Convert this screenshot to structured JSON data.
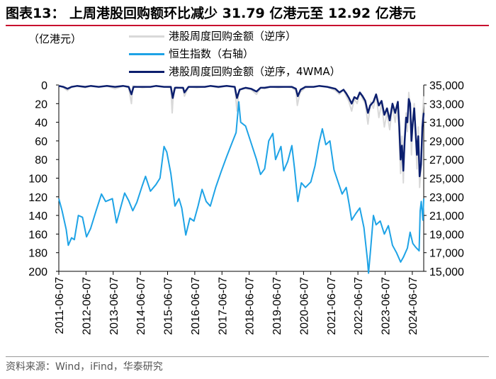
{
  "title": "图表13： 上周港股回购额环比减少 31.79 亿港元至 12.92 亿港元",
  "unit_label": "（亿港元）",
  "source": "资料来源：Wind，iFind，华泰研究",
  "colors": {
    "weekly": "#d9d9d9",
    "hsi": "#1ea3e6",
    "wma": "#0c1f6e",
    "title_rule": "#c8102e"
  },
  "legend": [
    {
      "label": "港股周度回购金额（逆序）",
      "color": "#d9d9d9"
    },
    {
      "label": "恒生指数（右轴）",
      "color": "#1ea3e6"
    },
    {
      "label": "港股周度回购金额（逆序，4WMA）",
      "color": "#0c1f6e"
    }
  ],
  "chart_data": {
    "type": "line",
    "x_labels": [
      "2011-06-07",
      "2012-06-07",
      "2013-06-07",
      "2014-06-07",
      "2015-06-07",
      "2016-06-07",
      "2017-06-07",
      "2018-06-07",
      "2019-06-07",
      "2020-06-07",
      "2021-06-07",
      "2022-06-07",
      "2023-06-07",
      "2024-06-07"
    ],
    "x_range": [
      2011.43,
      2024.85
    ],
    "left_axis": {
      "ticks": [
        "0",
        "20",
        "40",
        "60",
        "80",
        "100",
        "120",
        "140",
        "160",
        "180",
        "200"
      ],
      "range": [
        0,
        200
      ],
      "inverted": true
    },
    "right_axis": {
      "ticks": [
        "35,000",
        "33,000",
        "31,000",
        "29,000",
        "27,000",
        "25,000",
        "23,000",
        "21,000",
        "19,000",
        "17,000",
        "15,000"
      ],
      "range": [
        15000,
        35000
      ]
    },
    "series": [
      {
        "name": "恒生指数（右轴）",
        "axis": "right",
        "points": [
          [
            2011.43,
            22800
          ],
          [
            2011.55,
            21500
          ],
          [
            2011.7,
            19500
          ],
          [
            2011.78,
            17800
          ],
          [
            2011.9,
            18600
          ],
          [
            2012.0,
            18400
          ],
          [
            2012.15,
            21000
          ],
          [
            2012.3,
            20800
          ],
          [
            2012.45,
            18700
          ],
          [
            2012.6,
            19600
          ],
          [
            2012.8,
            21500
          ],
          [
            2013.0,
            23300
          ],
          [
            2013.15,
            22500
          ],
          [
            2013.4,
            22800
          ],
          [
            2013.55,
            20200
          ],
          [
            2013.7,
            21800
          ],
          [
            2013.85,
            23400
          ],
          [
            2014.0,
            22600
          ],
          [
            2014.15,
            21500
          ],
          [
            2014.3,
            22400
          ],
          [
            2014.5,
            24200
          ],
          [
            2014.62,
            25200
          ],
          [
            2014.8,
            23600
          ],
          [
            2015.0,
            24300
          ],
          [
            2015.15,
            25000
          ],
          [
            2015.3,
            28400
          ],
          [
            2015.4,
            27800
          ],
          [
            2015.55,
            25500
          ],
          [
            2015.7,
            22000
          ],
          [
            2015.85,
            22800
          ],
          [
            2015.95,
            21800
          ],
          [
            2016.1,
            18900
          ],
          [
            2016.25,
            20700
          ],
          [
            2016.4,
            20400
          ],
          [
            2016.55,
            22000
          ],
          [
            2016.7,
            23800
          ],
          [
            2016.85,
            22500
          ],
          [
            2017.0,
            22000
          ],
          [
            2017.2,
            24000
          ],
          [
            2017.4,
            25700
          ],
          [
            2017.6,
            27300
          ],
          [
            2017.8,
            28800
          ],
          [
            2017.95,
            29900
          ],
          [
            2018.05,
            33200
          ],
          [
            2018.12,
            31000
          ],
          [
            2018.3,
            30600
          ],
          [
            2018.5,
            28800
          ],
          [
            2018.7,
            27000
          ],
          [
            2018.85,
            25400
          ],
          [
            2019.0,
            26000
          ],
          [
            2019.15,
            29000
          ],
          [
            2019.3,
            29800
          ],
          [
            2019.4,
            27000
          ],
          [
            2019.6,
            28400
          ],
          [
            2019.7,
            25800
          ],
          [
            2019.85,
            26800
          ],
          [
            2020.0,
            28500
          ],
          [
            2020.1,
            26000
          ],
          [
            2020.22,
            22500
          ],
          [
            2020.35,
            24500
          ],
          [
            2020.5,
            24000
          ],
          [
            2020.7,
            24600
          ],
          [
            2020.85,
            26300
          ],
          [
            2021.0,
            28800
          ],
          [
            2021.12,
            30300
          ],
          [
            2021.25,
            28600
          ],
          [
            2021.4,
            29000
          ],
          [
            2021.55,
            25900
          ],
          [
            2021.7,
            24600
          ],
          [
            2021.85,
            23300
          ],
          [
            2022.0,
            24000
          ],
          [
            2022.12,
            22000
          ],
          [
            2022.2,
            20500
          ],
          [
            2022.35,
            21200
          ],
          [
            2022.5,
            21800
          ],
          [
            2022.65,
            19700
          ],
          [
            2022.78,
            16200
          ],
          [
            2022.82,
            14800
          ],
          [
            2022.9,
            17500
          ],
          [
            2023.0,
            21000
          ],
          [
            2023.1,
            20000
          ],
          [
            2023.25,
            20400
          ],
          [
            2023.4,
            19000
          ],
          [
            2023.55,
            19900
          ],
          [
            2023.7,
            17800
          ],
          [
            2023.85,
            17000
          ],
          [
            2024.0,
            16000
          ],
          [
            2024.1,
            16500
          ],
          [
            2024.25,
            17500
          ],
          [
            2024.35,
            19200
          ],
          [
            2024.45,
            18000
          ],
          [
            2024.55,
            17600
          ],
          [
            2024.68,
            17200
          ],
          [
            2024.72,
            21500
          ],
          [
            2024.76,
            22500
          ],
          [
            2024.82,
            20500
          ],
          [
            2024.85,
            22800
          ]
        ]
      },
      {
        "name": "港股周度回购金额（逆序）",
        "axis": "left",
        "points": [
          [
            2011.43,
            0
          ],
          [
            2011.6,
            3
          ],
          [
            2011.75,
            6
          ],
          [
            2011.9,
            2
          ],
          [
            2012.1,
            1
          ],
          [
            2012.4,
            3
          ],
          [
            2012.6,
            1
          ],
          [
            2012.9,
            2
          ],
          [
            2013.2,
            1
          ],
          [
            2013.5,
            4
          ],
          [
            2013.8,
            1
          ],
          [
            2014.0,
            3
          ],
          [
            2014.1,
            20
          ],
          [
            2014.15,
            1
          ],
          [
            2014.5,
            3
          ],
          [
            2014.8,
            2
          ],
          [
            2015.0,
            1
          ],
          [
            2015.3,
            2
          ],
          [
            2015.55,
            3
          ],
          [
            2015.6,
            30
          ],
          [
            2015.65,
            6
          ],
          [
            2015.75,
            2
          ],
          [
            2016.0,
            4
          ],
          [
            2016.05,
            12
          ],
          [
            2016.2,
            2
          ],
          [
            2016.5,
            3
          ],
          [
            2016.8,
            2
          ],
          [
            2017.0,
            1
          ],
          [
            2017.3,
            3
          ],
          [
            2017.6,
            1
          ],
          [
            2017.9,
            2
          ],
          [
            2017.98,
            28
          ],
          [
            2018.05,
            7
          ],
          [
            2018.2,
            3
          ],
          [
            2018.5,
            5
          ],
          [
            2018.7,
            10
          ],
          [
            2018.85,
            3
          ],
          [
            2019.0,
            4
          ],
          [
            2019.2,
            2
          ],
          [
            2019.5,
            3
          ],
          [
            2019.8,
            2
          ],
          [
            2020.0,
            3
          ],
          [
            2020.15,
            6
          ],
          [
            2020.2,
            22
          ],
          [
            2020.3,
            8
          ],
          [
            2020.5,
            3
          ],
          [
            2020.8,
            2
          ],
          [
            2021.0,
            1
          ],
          [
            2021.3,
            2
          ],
          [
            2021.6,
            6
          ],
          [
            2021.75,
            10
          ],
          [
            2021.9,
            5
          ],
          [
            2022.0,
            12
          ],
          [
            2022.1,
            18
          ],
          [
            2022.2,
            28
          ],
          [
            2022.3,
            15
          ],
          [
            2022.4,
            20
          ],
          [
            2022.5,
            8
          ],
          [
            2022.6,
            15
          ],
          [
            2022.7,
            20
          ],
          [
            2022.8,
            42
          ],
          [
            2022.85,
            30
          ],
          [
            2022.9,
            18
          ],
          [
            2023.0,
            25
          ],
          [
            2023.1,
            10
          ],
          [
            2023.2,
            35
          ],
          [
            2023.3,
            20
          ],
          [
            2023.4,
            45
          ],
          [
            2023.5,
            30
          ],
          [
            2023.6,
            48
          ],
          [
            2023.7,
            22
          ],
          [
            2023.8,
            40
          ],
          [
            2023.9,
            18
          ],
          [
            2023.95,
            60
          ],
          [
            2024.0,
            95
          ],
          [
            2024.05,
            55
          ],
          [
            2024.1,
            105
          ],
          [
            2024.15,
            60
          ],
          [
            2024.2,
            30
          ],
          [
            2024.25,
            50
          ],
          [
            2024.3,
            8
          ],
          [
            2024.35,
            25
          ],
          [
            2024.4,
            75
          ],
          [
            2024.45,
            35
          ],
          [
            2024.5,
            20
          ],
          [
            2024.6,
            90
          ],
          [
            2024.65,
            45
          ],
          [
            2024.7,
            110
          ],
          [
            2024.75,
            90
          ],
          [
            2024.8,
            35
          ],
          [
            2024.85,
            12
          ]
        ]
      },
      {
        "name": "港股周度回购金额（逆序，4WMA）",
        "axis": "left",
        "points": [
          [
            2011.43,
            1
          ],
          [
            2011.6,
            2
          ],
          [
            2011.75,
            4
          ],
          [
            2011.9,
            2
          ],
          [
            2012.1,
            1
          ],
          [
            2012.4,
            2
          ],
          [
            2012.6,
            1
          ],
          [
            2012.9,
            2
          ],
          [
            2013.2,
            1
          ],
          [
            2013.5,
            2
          ],
          [
            2013.8,
            1
          ],
          [
            2014.0,
            2
          ],
          [
            2014.1,
            10
          ],
          [
            2014.18,
            2
          ],
          [
            2014.5,
            2
          ],
          [
            2014.8,
            2
          ],
          [
            2015.0,
            1
          ],
          [
            2015.3,
            2
          ],
          [
            2015.55,
            2
          ],
          [
            2015.62,
            14
          ],
          [
            2015.7,
            3
          ],
          [
            2016.0,
            3
          ],
          [
            2016.05,
            8
          ],
          [
            2016.2,
            2
          ],
          [
            2016.5,
            2
          ],
          [
            2016.8,
            2
          ],
          [
            2017.0,
            1
          ],
          [
            2017.3,
            2
          ],
          [
            2017.6,
            1
          ],
          [
            2017.9,
            2
          ],
          [
            2017.98,
            14
          ],
          [
            2018.08,
            5
          ],
          [
            2018.3,
            3
          ],
          [
            2018.5,
            4
          ],
          [
            2018.7,
            7
          ],
          [
            2018.85,
            3
          ],
          [
            2019.0,
            3
          ],
          [
            2019.2,
            2
          ],
          [
            2019.5,
            2
          ],
          [
            2019.8,
            2
          ],
          [
            2020.0,
            2
          ],
          [
            2020.15,
            4
          ],
          [
            2020.22,
            12
          ],
          [
            2020.32,
            5
          ],
          [
            2020.5,
            2
          ],
          [
            2020.8,
            2
          ],
          [
            2021.0,
            1
          ],
          [
            2021.3,
            2
          ],
          [
            2021.6,
            4
          ],
          [
            2021.75,
            8
          ],
          [
            2021.9,
            5
          ],
          [
            2022.0,
            9
          ],
          [
            2022.1,
            14
          ],
          [
            2022.2,
            20
          ],
          [
            2022.3,
            13
          ],
          [
            2022.4,
            15
          ],
          [
            2022.5,
            8
          ],
          [
            2022.6,
            12
          ],
          [
            2022.7,
            17
          ],
          [
            2022.8,
            30
          ],
          [
            2022.88,
            22
          ],
          [
            2023.0,
            18
          ],
          [
            2023.1,
            10
          ],
          [
            2023.2,
            22
          ],
          [
            2023.3,
            17
          ],
          [
            2023.4,
            32
          ],
          [
            2023.5,
            25
          ],
          [
            2023.6,
            38
          ],
          [
            2023.7,
            20
          ],
          [
            2023.8,
            30
          ],
          [
            2023.9,
            18
          ],
          [
            2023.95,
            45
          ],
          [
            2024.0,
            80
          ],
          [
            2024.05,
            65
          ],
          [
            2024.1,
            92
          ],
          [
            2024.15,
            60
          ],
          [
            2024.2,
            35
          ],
          [
            2024.25,
            40
          ],
          [
            2024.3,
            15
          ],
          [
            2024.35,
            20
          ],
          [
            2024.4,
            60
          ],
          [
            2024.45,
            40
          ],
          [
            2024.5,
            25
          ],
          [
            2024.6,
            75
          ],
          [
            2024.65,
            55
          ],
          [
            2024.7,
            98
          ],
          [
            2024.75,
            85
          ],
          [
            2024.8,
            45
          ],
          [
            2024.85,
            30
          ]
        ]
      }
    ]
  }
}
